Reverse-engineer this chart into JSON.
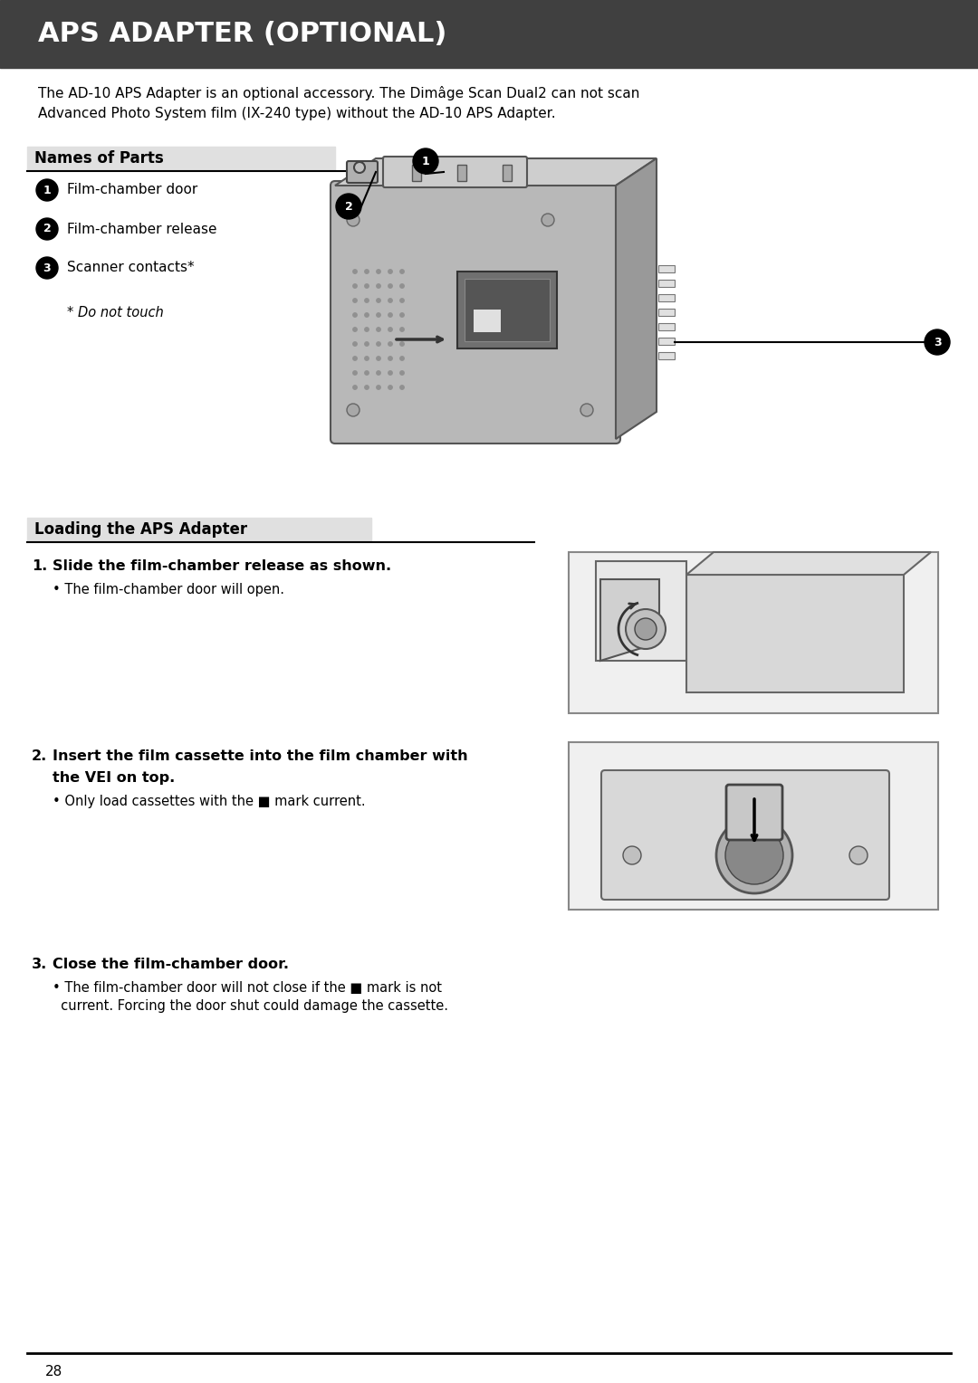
{
  "title": "APS ADAPTER (OPTIONAL)",
  "title_bg": "#404040",
  "title_color": "#ffffff",
  "title_fontsize": 22,
  "bg_color": "#ffffff",
  "body_text_color": "#000000",
  "intro_text_line1": "The AD-10 APS Adapter is an optional accessory. The Dimâge Scan Dual2 can not scan",
  "intro_text_line2": "Advanced Photo System film (IX-240 type) without the AD-10 APS Adapter.",
  "intro_fontsize": 11,
  "section1_title": "Names of Parts",
  "section2_title": "Loading the APS Adapter",
  "parts": [
    {
      "num": "1",
      "label": "Film-chamber door"
    },
    {
      "num": "2",
      "label": "Film-chamber release"
    },
    {
      "num": "3",
      "label": "Scanner contacts*"
    }
  ],
  "footnote": "* Do not touch",
  "steps": [
    {
      "num": "1",
      "bold": "Slide the film-chamber release as shown.",
      "detail": "• The film-chamber door will open."
    },
    {
      "num": "2",
      "bold_line1": "Insert the film cassette into the film chamber with",
      "bold_line2": "the VEI on top.",
      "detail": "• Only load cassettes with the ■ mark current."
    },
    {
      "num": "3",
      "bold": "Close the film-chamber door.",
      "detail_line1": "• The film-chamber door will not close if the ■ mark is not",
      "detail_line2": "  current. Forcing the door shut could damage the cassette."
    }
  ],
  "page_number": "28",
  "section_label_bg": "#e0e0e0",
  "adapter_body_color": "#b8b8b8",
  "adapter_top_color": "#cecece",
  "adapter_right_color": "#999999",
  "adapter_dark": "#555555",
  "photo_bg": "#f0f0f0",
  "photo_border": "#888888"
}
